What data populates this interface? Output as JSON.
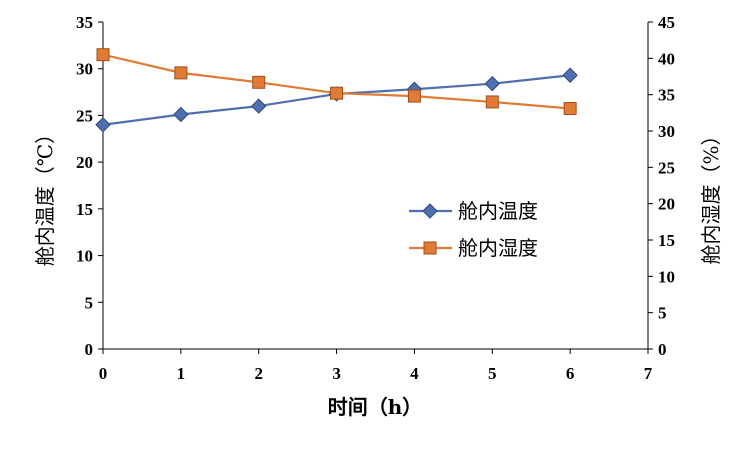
{
  "chart_data": {
    "type": "line",
    "x": [
      0,
      1,
      2,
      3,
      4,
      5,
      6
    ],
    "xlim": [
      0,
      7
    ],
    "x_ticks": [
      "0",
      "1",
      "2",
      "3",
      "4",
      "5",
      "6",
      "7"
    ],
    "xlabel": "时间（h）",
    "ylabel_left": "舱内温度（℃）",
    "ylabel_right": "舱内湿度（%）",
    "ylim_left": [
      0,
      35
    ],
    "ylim_right": [
      0,
      45
    ],
    "left_ticks": [
      "0",
      "5",
      "10",
      "15",
      "20",
      "25",
      "30",
      "35"
    ],
    "right_ticks": [
      "0",
      "5",
      "10",
      "15",
      "20",
      "25",
      "30",
      "35",
      "40",
      "45"
    ],
    "grid": false,
    "legend_position": "center-right",
    "series": [
      {
        "name": "舱内温度",
        "axis": "left",
        "values": [
          24.0,
          25.1,
          26.0,
          27.3,
          27.8,
          28.4,
          29.3
        ],
        "color": "#4F6FAF",
        "marker": "diamond"
      },
      {
        "name": "舱内湿度",
        "axis": "right",
        "values": [
          40.5,
          38.0,
          36.7,
          35.2,
          34.8,
          34.0,
          33.1
        ],
        "color": "#E07B36",
        "marker": "square"
      }
    ]
  }
}
